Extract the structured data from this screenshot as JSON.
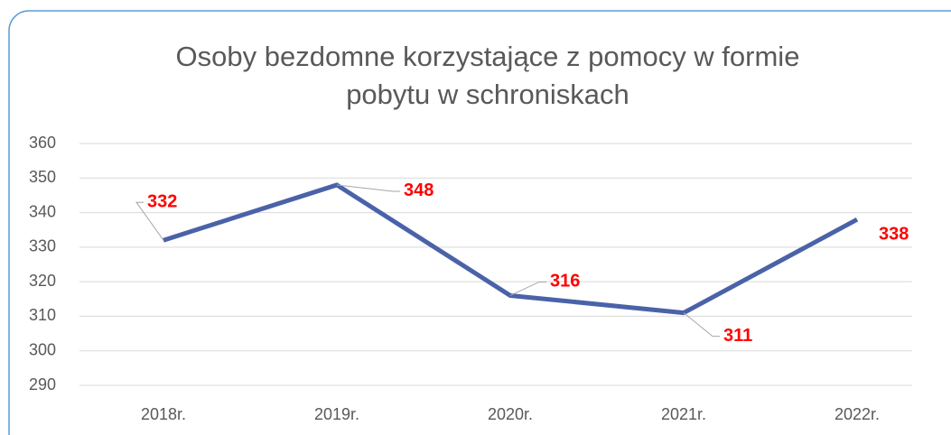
{
  "chart_data": {
    "type": "line",
    "title": "Osoby bezdomne korzystające z pomocy w formie pobytu w schroniskach",
    "categories": [
      "2018r.",
      "2019r.",
      "2020r.",
      "2021r.",
      "2022r."
    ],
    "series": [
      {
        "name": "Osoby bezdomne",
        "color": "#4a62a8",
        "values": [
          332,
          348,
          316,
          311,
          338
        ]
      }
    ],
    "ylim": [
      290,
      360
    ],
    "yticks": [
      290,
      300,
      310,
      320,
      330,
      340,
      350,
      360
    ],
    "grid": true,
    "value_label_color": "#ff0000"
  }
}
